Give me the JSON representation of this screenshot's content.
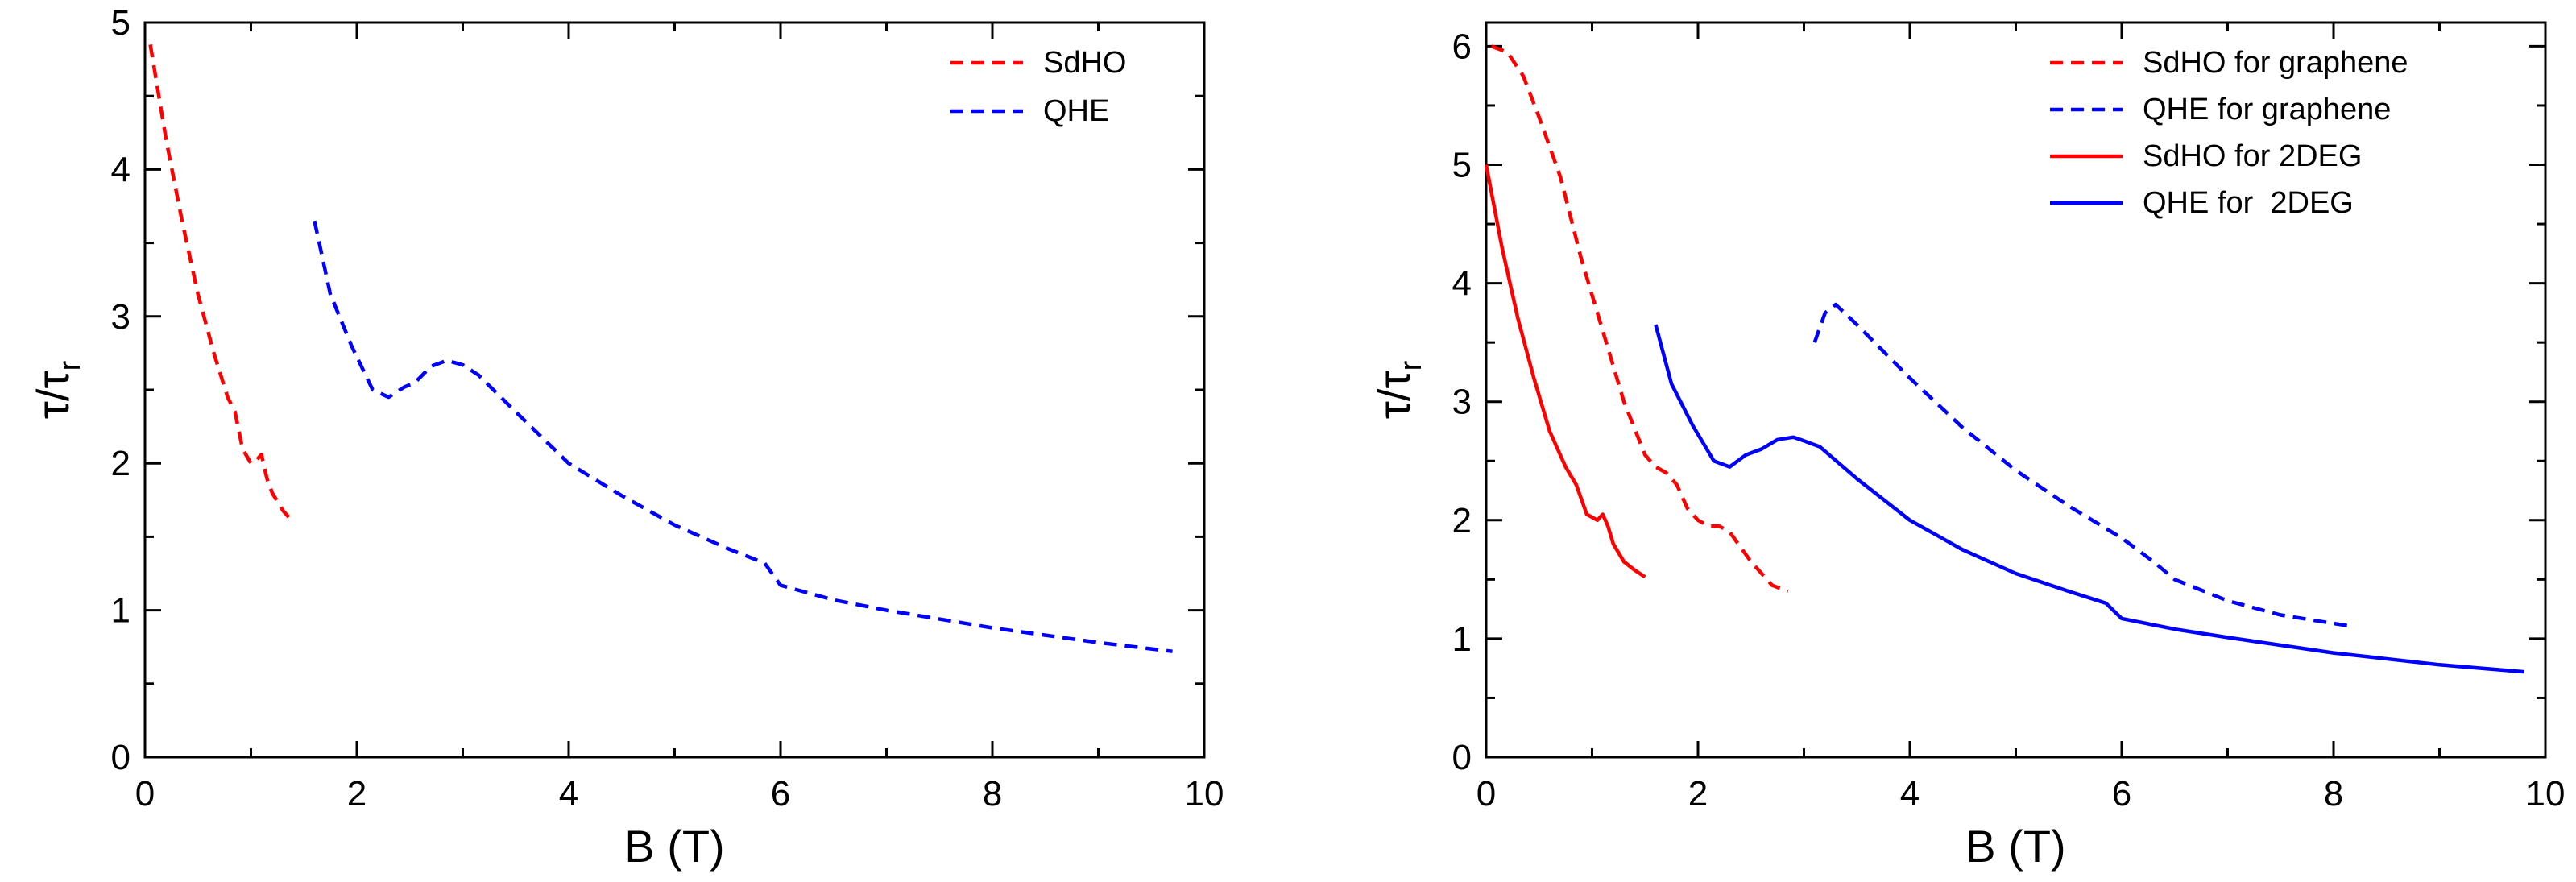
{
  "chart_data": [
    {
      "type": "line",
      "title": "",
      "xlabel": "B (T)",
      "ylabel": "τ/τr",
      "ylabel_main": "τ/τ",
      "ylabel_sub": "r",
      "xlim": [
        0,
        10
      ],
      "ylim": [
        0,
        5
      ],
      "xticks": [
        0,
        2,
        4,
        6,
        8,
        10
      ],
      "yticks": [
        0,
        1,
        2,
        3,
        4,
        5
      ],
      "grid": false,
      "legend_position": "top-right",
      "series": [
        {
          "name": "SdHO",
          "color": "#ff0000",
          "style": "dashed",
          "x": [
            0.05,
            0.2,
            0.35,
            0.5,
            0.65,
            0.78,
            0.85,
            0.92,
            1.0,
            1.05,
            1.1,
            1.15,
            1.2,
            1.3,
            1.4
          ],
          "y": [
            4.85,
            4.2,
            3.65,
            3.15,
            2.75,
            2.45,
            2.35,
            2.1,
            2.0,
            2.02,
            2.06,
            1.9,
            1.8,
            1.68,
            1.6
          ]
        },
        {
          "name": "QHE",
          "color": "#0000ff",
          "style": "dashed",
          "x": [
            1.6,
            1.75,
            1.95,
            2.15,
            2.3,
            2.45,
            2.55,
            2.7,
            2.85,
            3.0,
            3.15,
            3.5,
            4.0,
            4.5,
            5.0,
            5.5,
            5.85,
            6.0,
            6.5,
            7.0,
            8.0,
            9.0,
            9.7
          ],
          "y": [
            3.65,
            3.15,
            2.8,
            2.5,
            2.45,
            2.52,
            2.55,
            2.66,
            2.7,
            2.67,
            2.6,
            2.35,
            2.0,
            1.78,
            1.58,
            1.42,
            1.32,
            1.17,
            1.07,
            1.0,
            0.88,
            0.78,
            0.72
          ]
        }
      ]
    },
    {
      "type": "line",
      "title": "",
      "xlabel": "B (T)",
      "ylabel": "τ/τr",
      "ylabel_main": "τ/τ",
      "ylabel_sub": "r",
      "xlim": [
        0,
        10
      ],
      "ylim": [
        0,
        6.2
      ],
      "xticks": [
        0,
        2,
        4,
        6,
        8,
        10
      ],
      "yticks": [
        0,
        1,
        2,
        3,
        4,
        5,
        6
      ],
      "grid": false,
      "legend_position": "top-right",
      "series": [
        {
          "name": "SdHO for graphene",
          "color": "#ff0000",
          "style": "dashed",
          "x": [
            0.05,
            0.2,
            0.35,
            0.5,
            0.7,
            0.9,
            1.1,
            1.3,
            1.5,
            1.6,
            1.7,
            1.8,
            1.9,
            2.0,
            2.1,
            2.2,
            2.3,
            2.5,
            2.7,
            2.85
          ],
          "y": [
            6.0,
            5.95,
            5.75,
            5.4,
            4.9,
            4.2,
            3.6,
            3.0,
            2.55,
            2.45,
            2.4,
            2.3,
            2.1,
            2.0,
            1.95,
            1.95,
            1.9,
            1.65,
            1.45,
            1.4
          ]
        },
        {
          "name": "QHE for graphene",
          "color": "#0000ff",
          "style": "dashed",
          "x": [
            3.1,
            3.2,
            3.3,
            3.5,
            4.0,
            4.5,
            5.0,
            5.5,
            6.0,
            6.3,
            6.5,
            7.0,
            7.5,
            8.2
          ],
          "y": [
            3.5,
            3.75,
            3.82,
            3.65,
            3.2,
            2.78,
            2.42,
            2.12,
            1.85,
            1.65,
            1.5,
            1.32,
            1.2,
            1.1
          ]
        },
        {
          "name": "SdHO for 2DEG",
          "color": "#ff0000",
          "style": "solid",
          "x": [
            0.0,
            0.15,
            0.3,
            0.45,
            0.6,
            0.75,
            0.85,
            0.95,
            1.05,
            1.1,
            1.15,
            1.2,
            1.3,
            1.4,
            1.5
          ],
          "y": [
            5.0,
            4.3,
            3.7,
            3.2,
            2.75,
            2.45,
            2.3,
            2.05,
            2.0,
            2.05,
            1.95,
            1.8,
            1.65,
            1.58,
            1.52
          ]
        },
        {
          "name": "QHE for  2DEG",
          "color": "#0000ff",
          "style": "solid",
          "x": [
            1.6,
            1.75,
            1.95,
            2.15,
            2.3,
            2.45,
            2.6,
            2.75,
            2.9,
            3.0,
            3.15,
            3.5,
            4.0,
            4.5,
            5.0,
            5.5,
            5.85,
            6.0,
            6.5,
            7.0,
            8.0,
            9.0,
            9.8
          ],
          "y": [
            3.65,
            3.15,
            2.8,
            2.5,
            2.45,
            2.55,
            2.6,
            2.68,
            2.7,
            2.67,
            2.62,
            2.35,
            2.0,
            1.75,
            1.55,
            1.4,
            1.3,
            1.17,
            1.08,
            1.01,
            0.88,
            0.78,
            0.72
          ]
        }
      ]
    }
  ]
}
